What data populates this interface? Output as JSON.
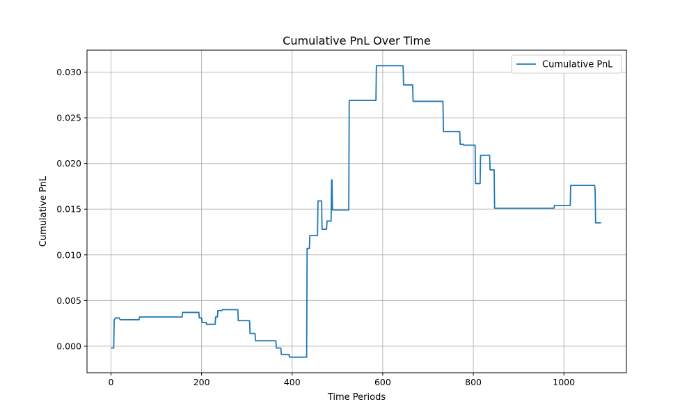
{
  "chart_data": {
    "type": "line",
    "title": "Cumulative PnL Over Time",
    "xlabel": "Time Periods",
    "ylabel": "Cumulative PnL",
    "xlim": [
      -53,
      1138
    ],
    "ylim": [
      -0.0029,
      0.0324
    ],
    "xticks": [
      0,
      200,
      400,
      600,
      800,
      1000
    ],
    "xtick_labels": [
      "0",
      "200",
      "400",
      "600",
      "800",
      "1000"
    ],
    "yticks": [
      0.0,
      0.005,
      0.01,
      0.015,
      0.02,
      0.025,
      0.03
    ],
    "ytick_labels": [
      "0.000",
      "0.005",
      "0.010",
      "0.015",
      "0.020",
      "0.025",
      "0.030"
    ],
    "grid": true,
    "legend": {
      "position": "top-right",
      "entries": [
        "Cumulative PnL"
      ]
    },
    "colors": {
      "line": "#1f77b4",
      "grid": "#b0b0b0",
      "axes": "#000000"
    },
    "series": [
      {
        "name": "Cumulative PnL",
        "points": [
          [
            0,
            -0.0002
          ],
          [
            6,
            -0.0002
          ],
          [
            7,
            0.0029
          ],
          [
            10,
            0.0031
          ],
          [
            18,
            0.0031
          ],
          [
            20,
            0.0029
          ],
          [
            62,
            0.0029
          ],
          [
            63,
            0.0032
          ],
          [
            157,
            0.0032
          ],
          [
            158,
            0.0037
          ],
          [
            194,
            0.0037
          ],
          [
            195,
            0.0031
          ],
          [
            200,
            0.0031
          ],
          [
            201,
            0.0026
          ],
          [
            210,
            0.0026
          ],
          [
            211,
            0.0024
          ],
          [
            230,
            0.0024
          ],
          [
            231,
            0.0032
          ],
          [
            235,
            0.0032
          ],
          [
            236,
            0.0039
          ],
          [
            245,
            0.0039
          ],
          [
            246,
            0.004
          ],
          [
            280,
            0.004
          ],
          [
            281,
            0.0028
          ],
          [
            306,
            0.0028
          ],
          [
            307,
            0.0014
          ],
          [
            318,
            0.0014
          ],
          [
            319,
            0.0006
          ],
          [
            364,
            0.0006
          ],
          [
            365,
            -0.0002
          ],
          [
            375,
            -0.0002
          ],
          [
            376,
            -0.0009
          ],
          [
            393,
            -0.0009
          ],
          [
            394,
            -0.0012
          ],
          [
            432,
            -0.0012
          ],
          [
            433,
            0.0107
          ],
          [
            438,
            0.0107
          ],
          [
            439,
            0.0121
          ],
          [
            456,
            0.0121
          ],
          [
            457,
            0.0159
          ],
          [
            465,
            0.0159
          ],
          [
            466,
            0.0128
          ],
          [
            476,
            0.0128
          ],
          [
            477,
            0.0137
          ],
          [
            486,
            0.0137
          ],
          [
            487,
            0.0182
          ],
          [
            488,
            0.0182
          ],
          [
            489,
            0.0149
          ],
          [
            525,
            0.0149
          ],
          [
            526,
            0.0269
          ],
          [
            585,
            0.0269
          ],
          [
            586,
            0.0307
          ],
          [
            645,
            0.0307
          ],
          [
            646,
            0.0286
          ],
          [
            666,
            0.0286
          ],
          [
            667,
            0.0268
          ],
          [
            733,
            0.0268
          ],
          [
            734,
            0.0235
          ],
          [
            770,
            0.0235
          ],
          [
            771,
            0.0221
          ],
          [
            778,
            0.0221
          ],
          [
            779,
            0.022
          ],
          [
            804,
            0.022
          ],
          [
            805,
            0.0178
          ],
          [
            815,
            0.0178
          ],
          [
            816,
            0.0209
          ],
          [
            836,
            0.0209
          ],
          [
            837,
            0.0193
          ],
          [
            846,
            0.0193
          ],
          [
            847,
            0.0151
          ],
          [
            978,
            0.0151
          ],
          [
            979,
            0.0154
          ],
          [
            1014,
            0.0154
          ],
          [
            1015,
            0.0176
          ],
          [
            1068,
            0.0176
          ],
          [
            1069,
            0.017
          ],
          [
            1070,
            0.0135
          ],
          [
            1082,
            0.0135
          ]
        ]
      }
    ]
  }
}
